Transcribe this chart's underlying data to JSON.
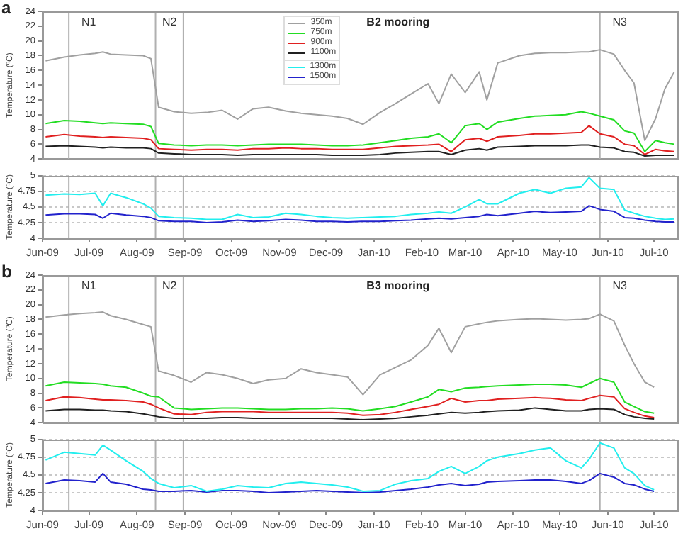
{
  "chart_data": [
    {
      "type": "line",
      "title": "B2 mooring",
      "ylabel": "Temperature (ºC)",
      "annotations": [
        "a"
      ],
      "tick_labels": "y",
      "x": [
        "2009-06-03",
        "2009-06-15",
        "2009-06-25",
        "2009-07-05",
        "2009-07-10",
        "2009-07-15",
        "2009-07-25",
        "2009-08-05",
        "2009-08-10",
        "2009-08-15",
        "2009-08-25",
        "2009-09-05",
        "2009-09-15",
        "2009-09-25",
        "2009-10-05",
        "2009-10-15",
        "2009-10-25",
        "2009-11-05",
        "2009-11-15",
        "2009-11-25",
        "2009-12-05",
        "2009-12-15",
        "2009-12-25",
        "2010-01-05",
        "2010-01-15",
        "2010-01-25",
        "2010-02-05",
        "2010-02-12",
        "2010-02-20",
        "2010-03-01",
        "2010-03-10",
        "2010-03-15",
        "2010-03-22",
        "2010-04-05",
        "2010-04-15",
        "2010-04-25",
        "2010-05-05",
        "2010-05-15",
        "2010-05-20",
        "2010-05-27",
        "2010-06-05",
        "2010-06-12",
        "2010-06-18",
        "2010-06-25",
        "2010-07-02",
        "2010-07-08",
        "2010-07-14"
      ],
      "series": [
        {
          "name": "350m",
          "color": "#a0a0a0",
          "values": [
            17.3,
            17.8,
            18.1,
            18.3,
            18.5,
            18.2,
            18.1,
            18.0,
            17.6,
            11.0,
            10.4,
            10.2,
            10.3,
            10.6,
            9.4,
            10.8,
            11.0,
            10.5,
            10.2,
            10.0,
            9.8,
            9.5,
            8.7,
            10.3,
            11.5,
            12.8,
            14.2,
            11.5,
            15.5,
            13.0,
            15.8,
            12.0,
            17.0,
            18.0,
            18.3,
            18.4,
            18.4,
            18.5,
            18.5,
            18.8,
            18.2,
            16.0,
            14.3,
            6.5,
            9.5,
            13.5,
            15.8
          ]
        },
        {
          "name": "750m",
          "color": "#22dd22",
          "values": [
            8.8,
            9.2,
            9.1,
            8.9,
            8.8,
            8.9,
            8.8,
            8.7,
            8.4,
            6.1,
            5.9,
            5.8,
            5.9,
            5.9,
            5.8,
            5.9,
            6.0,
            6.0,
            6.0,
            5.9,
            5.8,
            5.8,
            5.9,
            6.2,
            6.5,
            6.8,
            7.0,
            7.4,
            6.2,
            8.5,
            8.8,
            8.0,
            9.0,
            9.5,
            9.8,
            9.9,
            10.0,
            10.4,
            10.2,
            9.8,
            9.3,
            7.8,
            7.5,
            5.0,
            6.5,
            6.2,
            6.0
          ]
        },
        {
          "name": "900m",
          "color": "#e02020",
          "values": [
            7.0,
            7.3,
            7.1,
            7.0,
            6.9,
            7.0,
            6.9,
            6.8,
            6.6,
            5.4,
            5.3,
            5.2,
            5.3,
            5.3,
            5.2,
            5.4,
            5.4,
            5.5,
            5.4,
            5.4,
            5.3,
            5.3,
            5.3,
            5.5,
            5.7,
            5.8,
            5.9,
            6.0,
            5.0,
            6.6,
            6.8,
            6.4,
            7.0,
            7.2,
            7.4,
            7.4,
            7.5,
            7.6,
            8.5,
            7.4,
            7.0,
            6.0,
            5.8,
            4.6,
            5.3,
            5.1,
            5.0
          ]
        },
        {
          "name": "1100m",
          "color": "#202020",
          "values": [
            5.7,
            5.8,
            5.7,
            5.6,
            5.5,
            5.6,
            5.5,
            5.5,
            5.4,
            4.8,
            4.7,
            4.6,
            4.6,
            4.6,
            4.5,
            4.6,
            4.6,
            4.6,
            4.6,
            4.6,
            4.5,
            4.5,
            4.5,
            4.6,
            4.8,
            4.9,
            5.0,
            5.0,
            4.6,
            5.2,
            5.4,
            5.2,
            5.6,
            5.7,
            5.8,
            5.8,
            5.8,
            5.9,
            5.9,
            5.6,
            5.5,
            5.0,
            4.9,
            4.4,
            4.5,
            4.5,
            4.5
          ]
        }
      ],
      "xlim": [
        "2009-06-01",
        "2010-07-16"
      ],
      "ylim": [
        4,
        24
      ],
      "yticks": [
        4,
        6,
        8,
        10,
        12,
        14,
        16,
        18,
        20,
        22,
        24
      ],
      "ref_lines": [
        {
          "axis": "x",
          "value": "2009-06-18",
          "label": "N1",
          "color": "#b0b0b0"
        },
        {
          "axis": "x",
          "value": "2009-08-13",
          "label": "N2",
          "color": "#b0b0b0"
        },
        {
          "axis": "x",
          "value": "2009-08-31",
          "color": "#b0b0b0"
        },
        {
          "axis": "x",
          "value": "2010-05-27",
          "label": "N3",
          "color": "#b0b0b0"
        }
      ],
      "legend": "top",
      "marker": "none",
      "line_style": "solid"
    },
    {
      "type": "line",
      "ylabel": "Temperature (ºC)",
      "x": [
        "2009-06-03",
        "2009-06-15",
        "2009-06-25",
        "2009-07-05",
        "2009-07-10",
        "2009-07-15",
        "2009-07-25",
        "2009-08-05",
        "2009-08-10",
        "2009-08-15",
        "2009-08-25",
        "2009-09-05",
        "2009-09-15",
        "2009-09-25",
        "2009-10-05",
        "2009-10-15",
        "2009-10-25",
        "2009-11-05",
        "2009-11-15",
        "2009-11-25",
        "2009-12-05",
        "2009-12-15",
        "2009-12-25",
        "2010-01-05",
        "2010-01-15",
        "2010-01-25",
        "2010-02-05",
        "2010-02-12",
        "2010-02-20",
        "2010-03-01",
        "2010-03-10",
        "2010-03-15",
        "2010-03-22",
        "2010-04-05",
        "2010-04-15",
        "2010-04-25",
        "2010-05-05",
        "2010-05-15",
        "2010-05-20",
        "2010-05-27",
        "2010-06-05",
        "2010-06-12",
        "2010-06-18",
        "2010-06-25",
        "2010-07-02",
        "2010-07-08",
        "2010-07-14"
      ],
      "series": [
        {
          "name": "1300m",
          "color": "#22eeee",
          "values": [
            4.69,
            4.71,
            4.7,
            4.72,
            4.52,
            4.72,
            4.65,
            4.55,
            4.48,
            4.35,
            4.33,
            4.32,
            4.3,
            4.3,
            4.38,
            4.33,
            4.34,
            4.4,
            4.38,
            4.35,
            4.33,
            4.32,
            4.33,
            4.34,
            4.35,
            4.38,
            4.4,
            4.42,
            4.4,
            4.5,
            4.62,
            4.55,
            4.55,
            4.72,
            4.78,
            4.72,
            4.8,
            4.82,
            4.97,
            4.8,
            4.78,
            4.45,
            4.4,
            4.35,
            4.32,
            4.3,
            4.31
          ]
        },
        {
          "name": "1500m",
          "color": "#2222cc",
          "values": [
            4.37,
            4.39,
            4.39,
            4.38,
            4.32,
            4.4,
            4.37,
            4.35,
            4.33,
            4.28,
            4.27,
            4.27,
            4.25,
            4.26,
            4.29,
            4.27,
            4.28,
            4.3,
            4.29,
            4.27,
            4.27,
            4.26,
            4.27,
            4.27,
            4.28,
            4.29,
            4.31,
            4.32,
            4.31,
            4.33,
            4.35,
            4.38,
            4.36,
            4.4,
            4.43,
            4.41,
            4.42,
            4.43,
            4.52,
            4.46,
            4.43,
            4.33,
            4.32,
            4.29,
            4.27,
            4.26,
            4.26
          ]
        }
      ],
      "xlim": [
        "2009-06-01",
        "2010-07-16"
      ],
      "xticks": [
        {
          "value": "2009-06-01",
          "label": "Jun-09"
        },
        {
          "value": "2009-07-01",
          "label": "Jul-09"
        },
        {
          "value": "2009-08-01",
          "label": "Aug-09"
        },
        {
          "value": "2009-09-01",
          "label": "Sep-09"
        },
        {
          "value": "2009-10-01",
          "label": "Oct-09"
        },
        {
          "value": "2009-11-01",
          "label": "Nov-09"
        },
        {
          "value": "2009-12-01",
          "label": "Dec-09"
        },
        {
          "value": "2010-01-01",
          "label": "Jan-10"
        },
        {
          "value": "2010-02-01",
          "label": "Feb-10"
        },
        {
          "value": "2010-03-01",
          "label": "Mar-10"
        },
        {
          "value": "2010-04-01",
          "label": "Apr-10"
        },
        {
          "value": "2010-05-01",
          "label": "May-10"
        },
        {
          "value": "2010-06-01",
          "label": "Jun-10"
        },
        {
          "value": "2010-07-01",
          "label": "Jul-10"
        }
      ],
      "ylim": [
        4,
        5
      ],
      "yticks": [
        4,
        4.25,
        4.5,
        4.75,
        5
      ],
      "ref_lines": [
        {
          "axis": "x",
          "value": "2009-06-18",
          "color": "#b0b0b0"
        },
        {
          "axis": "x",
          "value": "2009-08-13",
          "color": "#b0b0b0"
        },
        {
          "axis": "x",
          "value": "2009-08-31",
          "color": "#b0b0b0"
        },
        {
          "axis": "x",
          "value": "2010-05-27",
          "color": "#b0b0b0"
        }
      ],
      "grid": "y",
      "legend": "top",
      "marker": "none",
      "line_style": "solid"
    },
    {
      "type": "line",
      "title": "B3 mooring",
      "ylabel": "Temperature (ºC)",
      "annotations": [
        "b"
      ],
      "tick_labels": "y",
      "x": [
        "2009-06-03",
        "2009-06-15",
        "2009-06-25",
        "2009-07-05",
        "2009-07-10",
        "2009-07-15",
        "2009-07-25",
        "2009-08-05",
        "2009-08-10",
        "2009-08-15",
        "2009-08-25",
        "2009-09-05",
        "2009-09-15",
        "2009-09-25",
        "2009-10-05",
        "2009-10-15",
        "2009-10-25",
        "2009-11-05",
        "2009-11-15",
        "2009-11-25",
        "2009-12-05",
        "2009-12-15",
        "2009-12-25",
        "2010-01-05",
        "2010-01-15",
        "2010-01-25",
        "2010-02-05",
        "2010-02-12",
        "2010-02-20",
        "2010-03-01",
        "2010-03-10",
        "2010-03-15",
        "2010-03-22",
        "2010-04-05",
        "2010-04-15",
        "2010-04-25",
        "2010-05-05",
        "2010-05-15",
        "2010-05-20",
        "2010-05-27",
        "2010-06-05",
        "2010-06-12",
        "2010-06-18",
        "2010-06-25",
        "2010-07-01"
      ],
      "series": [
        {
          "color": "#a0a0a0",
          "values": [
            18.3,
            18.6,
            18.8,
            18.9,
            19.0,
            18.5,
            18.0,
            17.3,
            17.0,
            11.0,
            10.4,
            9.5,
            10.8,
            10.5,
            10.0,
            9.3,
            9.8,
            10.0,
            11.3,
            10.8,
            10.5,
            10.2,
            7.8,
            10.5,
            11.5,
            12.5,
            14.5,
            16.8,
            13.5,
            17.0,
            17.4,
            17.6,
            17.8,
            18.0,
            18.1,
            18.0,
            17.9,
            18.0,
            18.1,
            18.7,
            17.8,
            14.5,
            12.0,
            9.5,
            8.8
          ]
        },
        {
          "color": "#22dd22",
          "values": [
            9.0,
            9.5,
            9.4,
            9.3,
            9.2,
            9.0,
            8.8,
            8.0,
            7.6,
            7.5,
            6.0,
            5.8,
            5.9,
            6.0,
            6.0,
            5.9,
            5.8,
            5.8,
            5.9,
            5.9,
            6.0,
            5.9,
            5.6,
            5.9,
            6.2,
            6.8,
            7.5,
            8.5,
            8.2,
            8.7,
            8.8,
            8.9,
            9.0,
            9.1,
            9.2,
            9.2,
            9.1,
            8.8,
            9.3,
            10.0,
            9.5,
            6.8,
            6.2,
            5.5,
            5.3
          ]
        },
        {
          "color": "#e02020",
          "values": [
            7.0,
            7.5,
            7.4,
            7.2,
            7.1,
            7.1,
            7.0,
            6.8,
            6.5,
            6.0,
            5.2,
            5.1,
            5.4,
            5.5,
            5.5,
            5.5,
            5.4,
            5.4,
            5.4,
            5.4,
            5.4,
            5.3,
            5.0,
            5.1,
            5.4,
            5.8,
            6.2,
            6.5,
            7.3,
            6.8,
            7.0,
            7.0,
            7.2,
            7.3,
            7.4,
            7.3,
            7.1,
            7.0,
            7.3,
            7.7,
            7.5,
            5.9,
            5.4,
            4.9,
            4.7
          ]
        },
        {
          "color": "#202020",
          "values": [
            5.6,
            5.8,
            5.8,
            5.7,
            5.7,
            5.6,
            5.5,
            5.2,
            5.0,
            4.8,
            4.6,
            4.6,
            4.6,
            4.7,
            4.7,
            4.6,
            4.6,
            4.6,
            4.6,
            4.6,
            4.6,
            4.5,
            4.4,
            4.5,
            4.6,
            4.8,
            5.0,
            5.2,
            5.4,
            5.3,
            5.4,
            5.5,
            5.6,
            5.7,
            6.0,
            5.8,
            5.6,
            5.6,
            5.8,
            5.9,
            5.8,
            5.1,
            4.8,
            4.6,
            4.5
          ]
        }
      ],
      "xlim": [
        "2009-06-01",
        "2010-07-16"
      ],
      "ylim": [
        4,
        24
      ],
      "yticks": [
        4,
        6,
        8,
        10,
        12,
        14,
        16,
        18,
        20,
        22,
        24
      ],
      "ref_lines": [
        {
          "axis": "x",
          "value": "2009-06-18",
          "label": "N1",
          "color": "#b0b0b0"
        },
        {
          "axis": "x",
          "value": "2009-08-13",
          "label": "N2",
          "color": "#b0b0b0"
        },
        {
          "axis": "x",
          "value": "2009-08-31",
          "color": "#b0b0b0"
        },
        {
          "axis": "x",
          "value": "2010-05-27",
          "label": "N3",
          "color": "#b0b0b0"
        }
      ],
      "marker": "none",
      "line_style": "solid"
    },
    {
      "type": "line",
      "ylabel": "Temperature (ºC)",
      "x": [
        "2009-06-03",
        "2009-06-15",
        "2009-06-25",
        "2009-07-05",
        "2009-07-10",
        "2009-07-15",
        "2009-07-25",
        "2009-08-05",
        "2009-08-10",
        "2009-08-15",
        "2009-08-25",
        "2009-09-05",
        "2009-09-15",
        "2009-09-25",
        "2009-10-05",
        "2009-10-15",
        "2009-10-25",
        "2009-11-05",
        "2009-11-15",
        "2009-11-25",
        "2009-12-05",
        "2009-12-15",
        "2009-12-25",
        "2010-01-05",
        "2010-01-15",
        "2010-01-25",
        "2010-02-05",
        "2010-02-12",
        "2010-02-20",
        "2010-03-01",
        "2010-03-10",
        "2010-03-15",
        "2010-03-22",
        "2010-04-05",
        "2010-04-15",
        "2010-04-25",
        "2010-05-05",
        "2010-05-15",
        "2010-05-20",
        "2010-05-27",
        "2010-06-05",
        "2010-06-12",
        "2010-06-18",
        "2010-06-25",
        "2010-07-01"
      ],
      "series": [
        {
          "color": "#22eeee",
          "values": [
            4.71,
            4.82,
            4.8,
            4.78,
            4.92,
            4.85,
            4.7,
            4.55,
            4.45,
            4.38,
            4.32,
            4.35,
            4.27,
            4.3,
            4.35,
            4.33,
            4.32,
            4.38,
            4.4,
            4.38,
            4.36,
            4.33,
            4.27,
            4.28,
            4.37,
            4.42,
            4.45,
            4.55,
            4.62,
            4.52,
            4.62,
            4.7,
            4.75,
            4.8,
            4.85,
            4.88,
            4.7,
            4.6,
            4.72,
            4.95,
            4.88,
            4.6,
            4.52,
            4.35,
            4.29
          ]
        },
        {
          "color": "#2222cc",
          "values": [
            4.38,
            4.43,
            4.42,
            4.4,
            4.52,
            4.4,
            4.37,
            4.3,
            4.29,
            4.27,
            4.27,
            4.28,
            4.26,
            4.28,
            4.28,
            4.27,
            4.25,
            4.26,
            4.27,
            4.28,
            4.27,
            4.26,
            4.25,
            4.26,
            4.28,
            4.3,
            4.33,
            4.36,
            4.38,
            4.35,
            4.37,
            4.4,
            4.41,
            4.42,
            4.43,
            4.43,
            4.41,
            4.38,
            4.42,
            4.52,
            4.47,
            4.38,
            4.36,
            4.3,
            4.27
          ]
        }
      ],
      "xlim": [
        "2009-06-01",
        "2010-07-16"
      ],
      "xticks": [
        {
          "value": "2009-06-01",
          "label": "Jun-09"
        },
        {
          "value": "2009-07-01",
          "label": "Jul-09"
        },
        {
          "value": "2009-08-01",
          "label": "Aug-09"
        },
        {
          "value": "2009-09-01",
          "label": "Sep-09"
        },
        {
          "value": "2009-10-01",
          "label": "Oct-09"
        },
        {
          "value": "2009-11-01",
          "label": "Nov-09"
        },
        {
          "value": "2009-12-01",
          "label": "Dec-09"
        },
        {
          "value": "2010-01-01",
          "label": "Jan-10"
        },
        {
          "value": "2010-02-01",
          "label": "Feb-10"
        },
        {
          "value": "2010-03-01",
          "label": "Mar-10"
        },
        {
          "value": "2010-04-01",
          "label": "Apr-10"
        },
        {
          "value": "2010-05-01",
          "label": "May-10"
        },
        {
          "value": "2010-06-01",
          "label": "Jun-10"
        },
        {
          "value": "2010-07-01",
          "label": "Jul-10"
        }
      ],
      "ylim": [
        4,
        5
      ],
      "yticks": [
        4,
        4.25,
        4.5,
        4.75,
        5
      ],
      "ref_lines": [
        {
          "axis": "x",
          "value": "2009-06-18",
          "color": "#b0b0b0"
        },
        {
          "axis": "x",
          "value": "2009-08-13",
          "color": "#b0b0b0"
        },
        {
          "axis": "x",
          "value": "2009-08-31",
          "color": "#b0b0b0"
        },
        {
          "axis": "x",
          "value": "2010-05-27",
          "color": "#b0b0b0"
        }
      ],
      "grid": "y",
      "marker": "none",
      "line_style": "solid"
    }
  ]
}
